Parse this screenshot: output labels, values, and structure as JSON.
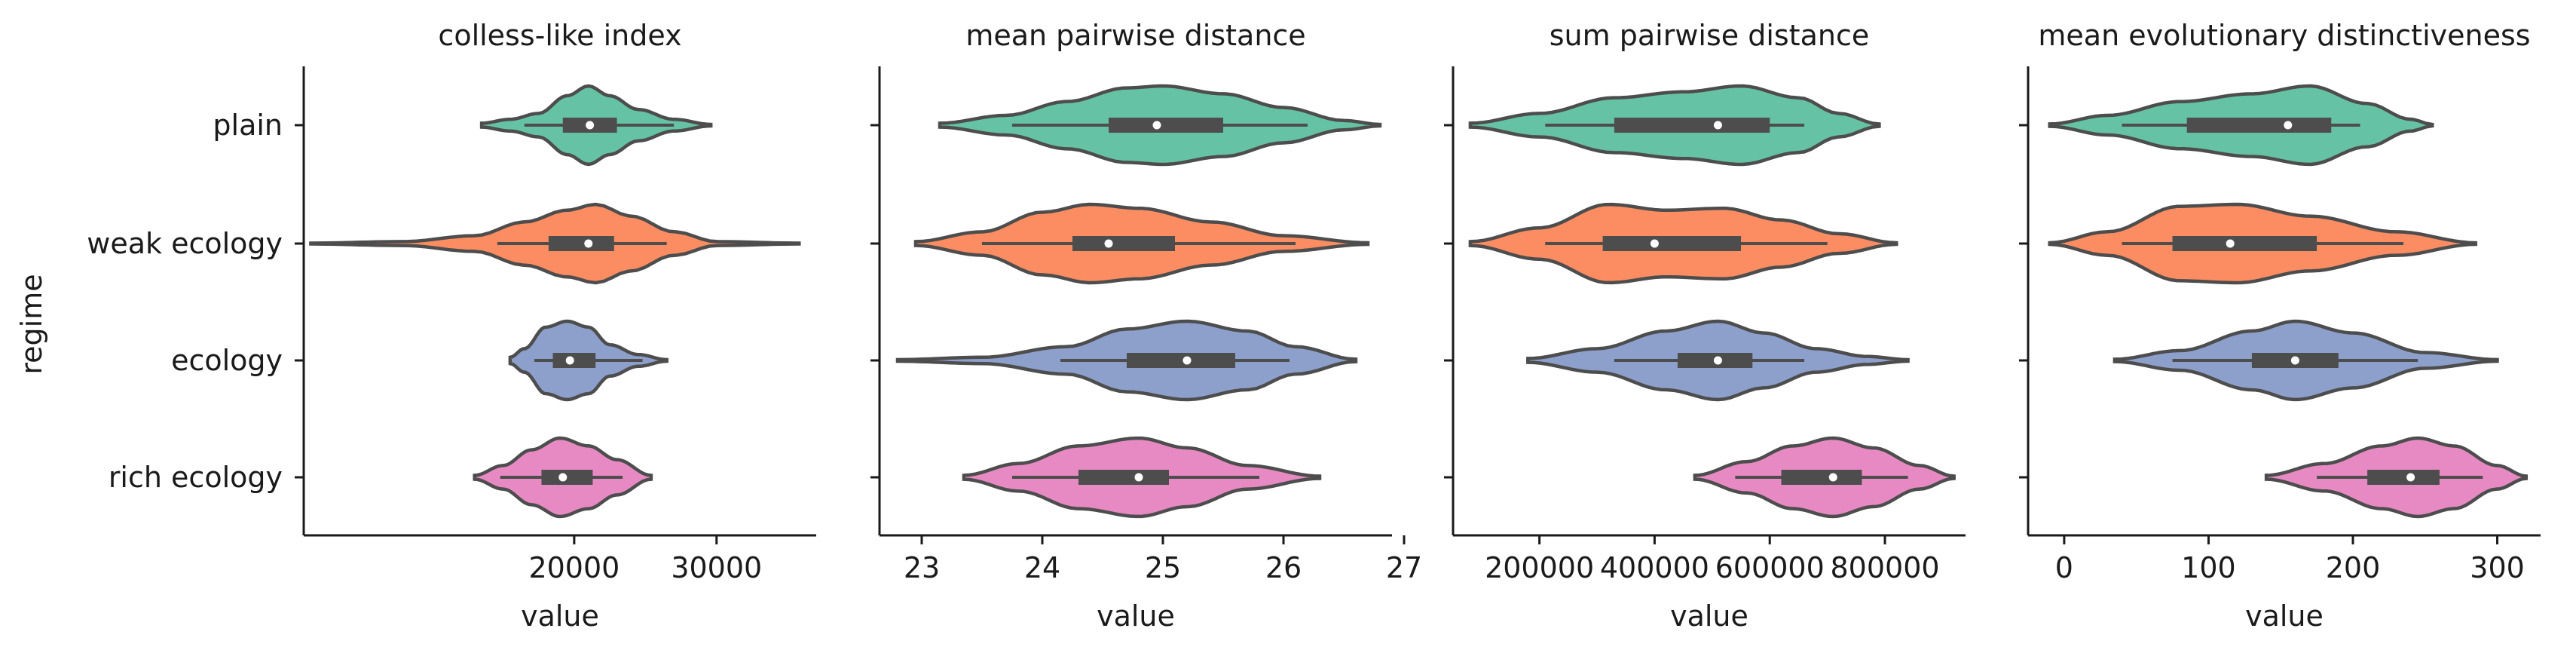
{
  "chart_data": {
    "type": "violin",
    "ylabel": "regime",
    "categories": [
      "plain",
      "weak ecology",
      "ecology",
      "rich ecology"
    ],
    "colors": [
      "#66c2a5",
      "#fc8d62",
      "#8da0cb",
      "#e78ac3"
    ],
    "panels": [
      {
        "title": "colless-like index",
        "xlabel": "value",
        "xlim": [
          1000,
          37000
        ],
        "xticks": [
          20000,
          30000
        ],
        "xticklabels": [
          "20000",
          "30000"
        ],
        "violins": [
          {
            "category": "plain",
            "min": 13500,
            "q1": 19200,
            "median": 21100,
            "q3": 23000,
            "max": 29600,
            "whisker_lo": 16500,
            "whisker_hi": 27000,
            "density": [
              [
                13500,
                0.05
              ],
              [
                15500,
                0.15
              ],
              [
                17500,
                0.3
              ],
              [
                19500,
                0.75
              ],
              [
                21000,
                1.0
              ],
              [
                22500,
                0.75
              ],
              [
                24500,
                0.4
              ],
              [
                27000,
                0.15
              ],
              [
                29600,
                0.02
              ]
            ]
          },
          {
            "category": "weak ecology",
            "min": 1500,
            "q1": 18200,
            "median": 21000,
            "q3": 22800,
            "max": 35800,
            "whisker_lo": 14600,
            "whisker_hi": 26500,
            "density": [
              [
                1500,
                0.01
              ],
              [
                8000,
                0.05
              ],
              [
                13000,
                0.2
              ],
              [
                16500,
                0.55
              ],
              [
                19500,
                0.85
              ],
              [
                21500,
                1.0
              ],
              [
                24000,
                0.7
              ],
              [
                27000,
                0.3
              ],
              [
                30000,
                0.05
              ],
              [
                35800,
                0.01
              ]
            ]
          },
          {
            "category": "ecology",
            "min": 15500,
            "q1": 18500,
            "median": 19700,
            "q3": 21500,
            "max": 26500,
            "whisker_lo": 17200,
            "whisker_hi": 24800,
            "density": [
              [
                15500,
                0.08
              ],
              [
                16500,
                0.3
              ],
              [
                18000,
                0.85
              ],
              [
                19500,
                1.0
              ],
              [
                21000,
                0.85
              ],
              [
                22500,
                0.4
              ],
              [
                24500,
                0.15
              ],
              [
                26500,
                0.02
              ]
            ]
          },
          {
            "category": "rich ecology",
            "min": 13000,
            "q1": 17700,
            "median": 19200,
            "q3": 21300,
            "max": 25400,
            "whisker_lo": 14800,
            "whisker_hi": 23400,
            "density": [
              [
                13000,
                0.05
              ],
              [
                15000,
                0.3
              ],
              [
                17000,
                0.7
              ],
              [
                19000,
                1.0
              ],
              [
                21000,
                0.8
              ],
              [
                23000,
                0.45
              ],
              [
                25400,
                0.05
              ]
            ]
          }
        ]
      },
      {
        "title": "mean pairwise distance",
        "xlabel": "value",
        "xlim": [
          22.65,
          26.9
        ],
        "xticks": [
          23,
          24,
          25,
          26,
          27
        ],
        "xticklabels": [
          "23",
          "24",
          "25",
          "26",
          "27"
        ],
        "violins": [
          {
            "category": "plain",
            "min": 23.15,
            "q1": 24.55,
            "median": 24.95,
            "q3": 25.5,
            "max": 26.8,
            "whisker_lo": 23.75,
            "whisker_hi": 26.2,
            "density": [
              [
                23.15,
                0.05
              ],
              [
                23.7,
                0.25
              ],
              [
                24.2,
                0.6
              ],
              [
                24.7,
                0.95
              ],
              [
                25.0,
                1.0
              ],
              [
                25.5,
                0.8
              ],
              [
                26.0,
                0.45
              ],
              [
                26.5,
                0.12
              ],
              [
                26.8,
                0.02
              ]
            ]
          },
          {
            "category": "weak ecology",
            "min": 22.95,
            "q1": 24.25,
            "median": 24.55,
            "q3": 25.1,
            "max": 26.7,
            "whisker_lo": 23.5,
            "whisker_hi": 26.1,
            "density": [
              [
                22.95,
                0.05
              ],
              [
                23.5,
                0.3
              ],
              [
                24.0,
                0.8
              ],
              [
                24.4,
                1.0
              ],
              [
                24.8,
                0.9
              ],
              [
                25.4,
                0.55
              ],
              [
                26.0,
                0.2
              ],
              [
                26.7,
                0.02
              ]
            ]
          },
          {
            "category": "ecology",
            "min": 22.8,
            "q1": 24.7,
            "median": 25.2,
            "q3": 25.6,
            "max": 26.6,
            "whisker_lo": 24.15,
            "whisker_hi": 26.05,
            "density": [
              [
                22.8,
                0.02
              ],
              [
                23.5,
                0.08
              ],
              [
                24.2,
                0.35
              ],
              [
                24.7,
                0.8
              ],
              [
                25.2,
                1.0
              ],
              [
                25.7,
                0.75
              ],
              [
                26.1,
                0.35
              ],
              [
                26.6,
                0.03
              ]
            ]
          },
          {
            "category": "rich ecology",
            "min": 23.35,
            "q1": 24.3,
            "median": 24.8,
            "q3": 25.05,
            "max": 26.3,
            "whisker_lo": 23.75,
            "whisker_hi": 25.8,
            "density": [
              [
                23.35,
                0.05
              ],
              [
                23.8,
                0.35
              ],
              [
                24.3,
                0.8
              ],
              [
                24.8,
                1.0
              ],
              [
                25.2,
                0.75
              ],
              [
                25.7,
                0.3
              ],
              [
                26.3,
                0.03
              ]
            ]
          }
        ]
      },
      {
        "title": "sum pairwise distance",
        "xlabel": "value",
        "xlim": [
          50000,
          940000
        ],
        "xticks": [
          200000,
          400000,
          600000,
          800000
        ],
        "xticklabels": [
          "200000",
          "400000",
          "600000",
          "800000"
        ],
        "violins": [
          {
            "category": "plain",
            "min": 80000,
            "q1": 330000,
            "median": 510000,
            "q3": 600000,
            "max": 790000,
            "whisker_lo": 210000,
            "whisker_hi": 660000,
            "density": [
              [
                80000,
                0.05
              ],
              [
                200000,
                0.3
              ],
              [
                330000,
                0.7
              ],
              [
                450000,
                0.85
              ],
              [
                550000,
                1.0
              ],
              [
                650000,
                0.7
              ],
              [
                720000,
                0.3
              ],
              [
                790000,
                0.03
              ]
            ]
          },
          {
            "category": "weak ecology",
            "min": 80000,
            "q1": 310000,
            "median": 400000,
            "q3": 550000,
            "max": 820000,
            "whisker_lo": 210000,
            "whisker_hi": 700000,
            "density": [
              [
                80000,
                0.05
              ],
              [
                200000,
                0.4
              ],
              [
                320000,
                1.0
              ],
              [
                420000,
                0.85
              ],
              [
                520000,
                0.9
              ],
              [
                620000,
                0.6
              ],
              [
                720000,
                0.25
              ],
              [
                820000,
                0.02
              ]
            ]
          },
          {
            "category": "ecology",
            "min": 180000,
            "q1": 440000,
            "median": 510000,
            "q3": 570000,
            "max": 840000,
            "whisker_lo": 330000,
            "whisker_hi": 660000,
            "density": [
              [
                180000,
                0.05
              ],
              [
                300000,
                0.3
              ],
              [
                420000,
                0.75
              ],
              [
                510000,
                1.0
              ],
              [
                590000,
                0.7
              ],
              [
                680000,
                0.3
              ],
              [
                770000,
                0.1
              ],
              [
                840000,
                0.02
              ]
            ]
          },
          {
            "category": "rich ecology",
            "min": 470000,
            "q1": 620000,
            "median": 710000,
            "q3": 760000,
            "max": 920000,
            "whisker_lo": 540000,
            "whisker_hi": 840000,
            "density": [
              [
                470000,
                0.05
              ],
              [
                560000,
                0.4
              ],
              [
                640000,
                0.8
              ],
              [
                710000,
                1.0
              ],
              [
                780000,
                0.75
              ],
              [
                860000,
                0.3
              ],
              [
                920000,
                0.03
              ]
            ]
          }
        ]
      },
      {
        "title": "mean evolutionary distinctiveness",
        "xlabel": "value",
        "xlim": [
          -25,
          330
        ],
        "xticks": [
          0,
          100,
          200,
          300
        ],
        "xticklabels": [
          "0",
          "100",
          "200",
          "300"
        ],
        "violins": [
          {
            "category": "plain",
            "min": -10,
            "q1": 85,
            "median": 155,
            "q3": 185,
            "max": 255,
            "whisker_lo": 40,
            "whisker_hi": 205,
            "density": [
              [
                -10,
                0.03
              ],
              [
                30,
                0.25
              ],
              [
                80,
                0.6
              ],
              [
                130,
                0.8
              ],
              [
                170,
                1.0
              ],
              [
                210,
                0.55
              ],
              [
                240,
                0.15
              ],
              [
                255,
                0.02
              ]
            ]
          },
          {
            "category": "weak ecology",
            "min": -10,
            "q1": 75,
            "median": 115,
            "q3": 175,
            "max": 285,
            "whisker_lo": 40,
            "whisker_hi": 235,
            "density": [
              [
                -10,
                0.02
              ],
              [
                30,
                0.3
              ],
              [
                80,
                0.95
              ],
              [
                120,
                1.0
              ],
              [
                170,
                0.7
              ],
              [
                230,
                0.3
              ],
              [
                285,
                0.02
              ]
            ]
          },
          {
            "category": "ecology",
            "min": 35,
            "q1": 130,
            "median": 160,
            "q3": 190,
            "max": 300,
            "whisker_lo": 75,
            "whisker_hi": 245,
            "density": [
              [
                35,
                0.03
              ],
              [
                80,
                0.25
              ],
              [
                130,
                0.75
              ],
              [
                160,
                1.0
              ],
              [
                200,
                0.7
              ],
              [
                250,
                0.2
              ],
              [
                300,
                0.02
              ]
            ]
          },
          {
            "category": "rich ecology",
            "min": 140,
            "q1": 210,
            "median": 240,
            "q3": 260,
            "max": 320,
            "whisker_lo": 175,
            "whisker_hi": 290,
            "density": [
              [
                140,
                0.05
              ],
              [
                180,
                0.35
              ],
              [
                220,
                0.8
              ],
              [
                245,
                1.0
              ],
              [
                270,
                0.8
              ],
              [
                300,
                0.3
              ],
              [
                320,
                0.03
              ]
            ]
          }
        ]
      }
    ]
  }
}
